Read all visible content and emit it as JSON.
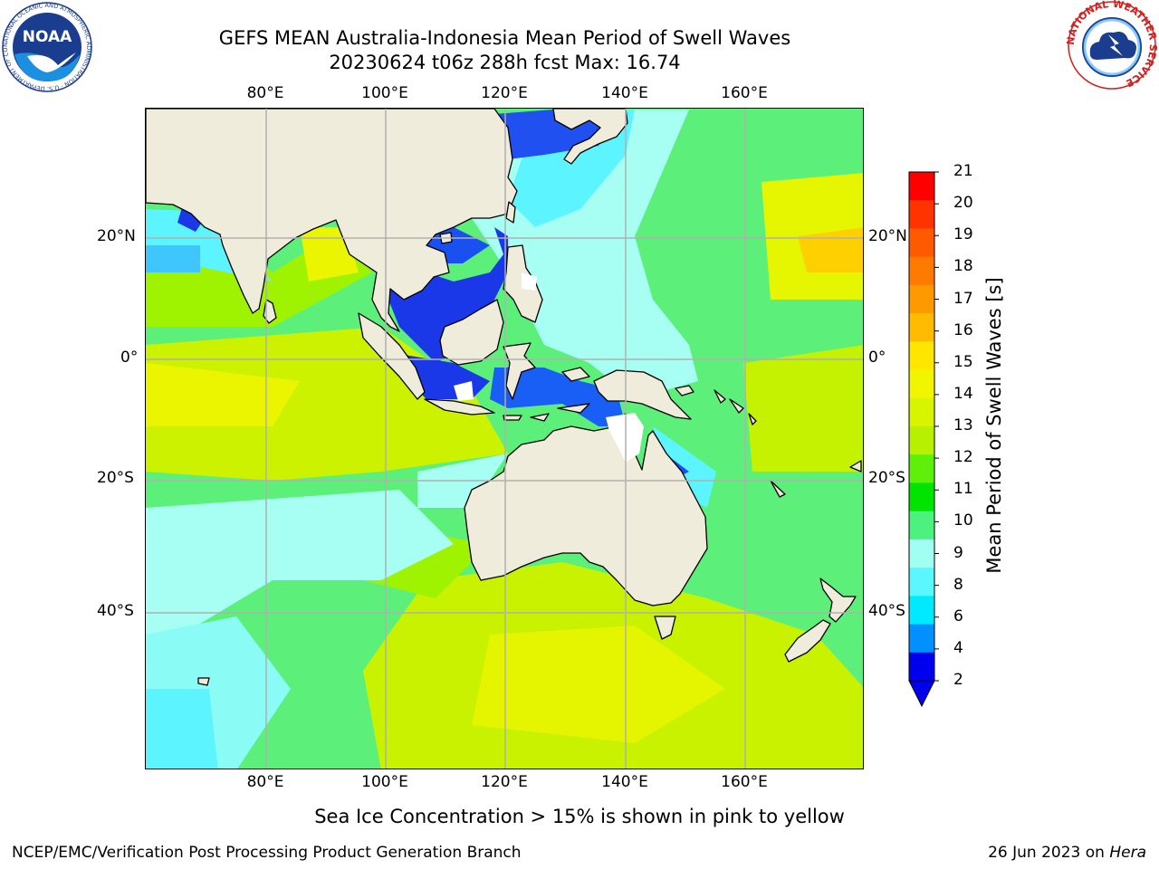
{
  "title": {
    "line1": "GEFS MEAN Australia-Indonesia Mean Period of Swell Waves",
    "line2": "20230624 t06z 288h fcst   Max: 16.74"
  },
  "axes": {
    "lon_labels": [
      "80°E",
      "100°E",
      "120°E",
      "140°E",
      "160°E"
    ],
    "lat_labels": [
      "20°N",
      "0°",
      "20°S",
      "40°S"
    ]
  },
  "colorbar": {
    "label": "Mean Period of Swell Waves [s]",
    "ticks": [
      "21",
      "20",
      "19",
      "18",
      "17",
      "16",
      "15",
      "14",
      "13",
      "12",
      "11",
      "10",
      "9",
      "8",
      "6",
      "4",
      "2"
    ],
    "colors": [
      "#ff0000",
      "#ff3300",
      "#ff5a00",
      "#ff7a00",
      "#ff9900",
      "#ffbb00",
      "#ffe600",
      "#f2f500",
      "#d8f500",
      "#b7f000",
      "#5ef00a",
      "#00e400",
      "#4df27e",
      "#a0fff0",
      "#5af7ff",
      "#00eaff",
      "#0090ff",
      "#0000ee"
    ],
    "extend": "min"
  },
  "logos": {
    "noaa": "NOAA",
    "nws_arc": "NATIONAL WEATHER SERVICE",
    "noaa_arc": "NATIONAL OCEANIC AND ATMOSPHERIC ADMINISTRATION · U.S. DEPARTMENT OF COMMERCE"
  },
  "footer": {
    "note": "Sea Ice Concentration > 15% is shown in pink to yellow",
    "credit": "NCEP/EMC/Verification Post Processing Product Generation Branch",
    "date_prefix": "26 Jun 2023 on ",
    "date_host": "Hera"
  },
  "map_colors": {
    "land": "#efecdc",
    "grid": "#b0b0b0"
  }
}
